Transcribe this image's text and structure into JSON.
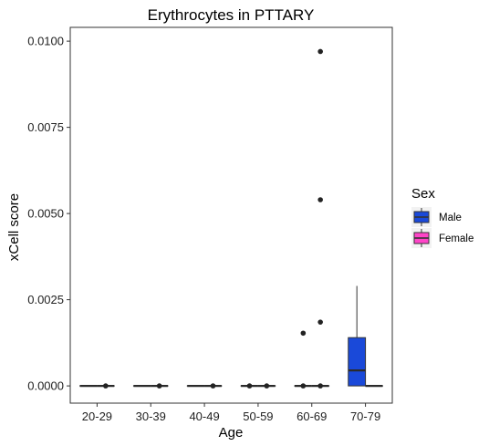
{
  "chart_data": {
    "type": "boxplot",
    "title": "Erythrocytes in PTTARY",
    "xlabel": "Age",
    "ylabel": "xCell score",
    "categories": [
      "20-29",
      "30-39",
      "40-49",
      "50-59",
      "60-69",
      "70-79"
    ],
    "y_ticks": [
      "0.0000",
      "0.0025",
      "0.0050",
      "0.0075",
      "0.0100"
    ],
    "y_tick_values": [
      0,
      0.0025,
      0.005,
      0.0075,
      0.01
    ],
    "ylim": [
      -0.0005,
      0.0104
    ],
    "grid": false,
    "legend": {
      "title": "Sex",
      "position": "right",
      "entries": [
        {
          "name": "Male",
          "color": "#1a49d9"
        },
        {
          "name": "Female",
          "color": "#ff44c8"
        }
      ]
    },
    "series": [
      {
        "name": "Male",
        "color": "#1a49d9",
        "boxes": [
          {
            "category": "20-29",
            "min": 0,
            "q1": 0,
            "median": 0,
            "q3": 0,
            "max": 0,
            "outliers": []
          },
          {
            "category": "30-39",
            "min": 0,
            "q1": 0,
            "median": 0,
            "q3": 0,
            "max": 0,
            "outliers": []
          },
          {
            "category": "40-49",
            "min": 0,
            "q1": 0,
            "median": 0,
            "q3": 0,
            "max": 0,
            "outliers": []
          },
          {
            "category": "50-59",
            "min": 0,
            "q1": 0,
            "median": 0,
            "q3": 0,
            "max": 0,
            "outliers": [
              0
            ]
          },
          {
            "category": "60-69",
            "min": 0,
            "q1": 0,
            "median": 0,
            "q3": 0,
            "max": 0,
            "outliers": [
              0.00153,
              0
            ]
          },
          {
            "category": "70-79",
            "min": 0,
            "q1": 0,
            "median": 0.00045,
            "q3": 0.0014,
            "max": 0.0029,
            "outliers": []
          }
        ]
      },
      {
        "name": "Female",
        "color": "#ff44c8",
        "boxes": [
          {
            "category": "20-29",
            "min": 0,
            "q1": 0,
            "median": 0,
            "q3": 0,
            "max": 0,
            "outliers": [
              0
            ]
          },
          {
            "category": "30-39",
            "min": 0,
            "q1": 0,
            "median": 0,
            "q3": 0,
            "max": 0,
            "outliers": [
              0
            ]
          },
          {
            "category": "40-49",
            "min": 0,
            "q1": 0,
            "median": 0,
            "q3": 0,
            "max": 0,
            "outliers": [
              0
            ]
          },
          {
            "category": "50-59",
            "min": 0,
            "q1": 0,
            "median": 0,
            "q3": 0,
            "max": 0,
            "outliers": [
              0
            ]
          },
          {
            "category": "60-69",
            "min": 0,
            "q1": 0,
            "median": 0,
            "q3": 0,
            "max": 0,
            "outliers": [
              0.0097,
              0.0054,
              0.00185,
              0
            ]
          },
          {
            "category": "70-79",
            "min": 0,
            "q1": 0,
            "median": 0,
            "q3": 0,
            "max": 0,
            "outliers": []
          }
        ]
      }
    ]
  }
}
